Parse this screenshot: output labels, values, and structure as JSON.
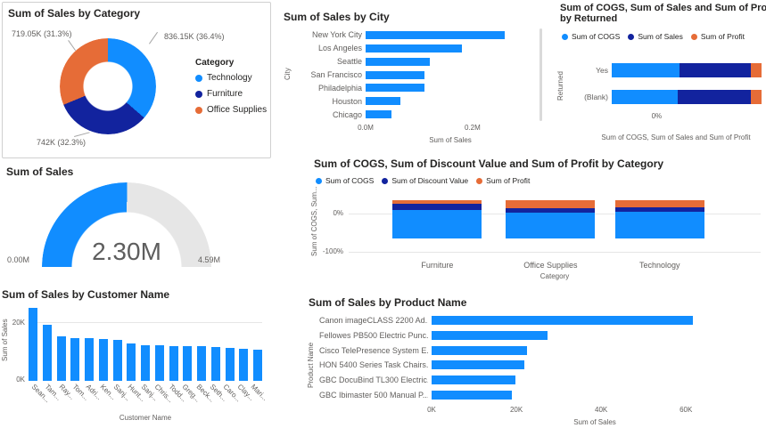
{
  "colors": {
    "blue": "#118DFF",
    "dark_blue": "#12239E",
    "orange": "#E66C37",
    "title_text": "#252423",
    "axis_text": "#605E5C",
    "grid": "#E6E6E6",
    "gauge_track": "#E6E6E6",
    "gauge_value_text": "#5E5E5E",
    "background": "#FFFFFF"
  },
  "chart_data": [
    {
      "id": "donut-sales-by-category",
      "type": "pie",
      "title": "Sum of Sales by Category",
      "legend_title": "Category",
      "legend_position": "right",
      "slices": [
        {
          "name": "Technology",
          "color_key": "blue",
          "value_label": "836.15K (36.4%)",
          "pct": 36.4
        },
        {
          "name": "Furniture",
          "color_key": "dark_blue",
          "value_label": "742K (32.3%)",
          "pct": 32.3
        },
        {
          "name": "Office Supplies",
          "color_key": "orange",
          "value_label": "719.05K (31.3%)",
          "pct": 31.3
        }
      ]
    },
    {
      "id": "gauge-sum-of-sales",
      "type": "gauge",
      "title": "Sum of Sales",
      "value": 2.3,
      "min": 0,
      "max": 4.59,
      "value_label": "2.30M",
      "min_label": "0.00M",
      "max_label": "4.59M"
    },
    {
      "id": "bar-sales-by-city",
      "type": "bar",
      "orientation": "horizontal",
      "title": "Sum of Sales by City",
      "xlabel": "Sum of Sales",
      "ylabel": "City",
      "categories": [
        "New York City",
        "Los Angeles",
        "Seattle",
        "San Francisco",
        "Philadelphia",
        "Houston",
        "Chicago"
      ],
      "values": [
        0.26,
        0.18,
        0.12,
        0.11,
        0.11,
        0.065,
        0.049
      ],
      "unit": "M",
      "xmax": 0.317,
      "xticks": [
        {
          "label": "0.0M",
          "v": 0
        },
        {
          "label": "0.2M",
          "v": 0.2
        }
      ]
    },
    {
      "id": "stacked-bar-by-returned",
      "type": "bar",
      "orientation": "horizontal",
      "stacked": true,
      "stack_mode": "percent",
      "title": "Sum of COGS, Sum of Sales and Sum of Profit by Returned",
      "title_line1": "Sum of COGS, Sum of Sales and Sum of Prof",
      "title_line2": "by Returned",
      "xlabel": "Sum of COGS, Sum of Sales and Sum of Profit",
      "ylabel": "Returned",
      "categories": [
        "Yes",
        "(Blank)"
      ],
      "legend": [
        {
          "label": "Sum of COGS",
          "color_key": "blue"
        },
        {
          "label": "Sum of Sales",
          "color_key": "dark_blue"
        },
        {
          "label": "Sum of Profit",
          "color_key": "orange"
        }
      ],
      "series": [
        {
          "name": "Sum of COGS",
          "color_key": "blue",
          "values": [
            45,
            44
          ]
        },
        {
          "name": "Sum of Sales",
          "color_key": "dark_blue",
          "values": [
            48,
            49
          ]
        },
        {
          "name": "Sum of Profit",
          "color_key": "orange",
          "values": [
            7,
            7
          ]
        }
      ],
      "xticks": [
        {
          "label": "0%",
          "pos_pct": 30
        }
      ]
    },
    {
      "id": "stacked-column-by-category",
      "type": "bar",
      "orientation": "vertical",
      "stacked": true,
      "stack_mode": "percent",
      "title": "Sum of COGS, Sum of Discount Value and Sum of Profit by Category",
      "xlabel": "Category",
      "ylabel": "Sum of COGS, Sum...",
      "categories": [
        "Furniture",
        "Office Supplies",
        "Technology"
      ],
      "legend": [
        {
          "label": "Sum of COGS",
          "color_key": "blue"
        },
        {
          "label": "Sum of Discount Value",
          "color_key": "dark_blue"
        },
        {
          "label": "Sum of Profit",
          "color_key": "orange"
        }
      ],
      "series": [
        {
          "name": "Sum of Profit",
          "color_key": "orange",
          "values": [
            9,
            22,
            18
          ]
        },
        {
          "name": "Sum of Discount Value",
          "color_key": "dark_blue",
          "values": [
            16,
            11,
            13
          ]
        },
        {
          "name": "Sum of COGS",
          "color_key": "blue",
          "values": [
            75,
            67,
            69
          ]
        }
      ],
      "yticks": [
        {
          "label": "0%"
        },
        {
          "label": "-100%"
        }
      ]
    },
    {
      "id": "bar-sales-by-customer",
      "type": "bar",
      "orientation": "vertical",
      "title": "Sum of Sales by Customer Name",
      "xlabel": "Customer Name",
      "ylabel": "Sum of Sales",
      "categories": [
        "Sean...",
        "Tam...",
        "Ray...",
        "Tom...",
        "Adri...",
        "Ken...",
        "Sanj...",
        "Hunt...",
        "Sanj...",
        "Chris...",
        "Todd...",
        "Greg...",
        "Beck...",
        "Seth...",
        "Caro...",
        "Clay...",
        "Mari..."
      ],
      "values": [
        25.0,
        19.1,
        15.1,
        14.6,
        14.5,
        14.2,
        14.1,
        12.9,
        12.2,
        12.1,
        11.9,
        11.8,
        11.8,
        11.5,
        11.2,
        10.9,
        10.7
      ],
      "unit": "K",
      "ymax": 25.5,
      "yticks": [
        {
          "label": "20K",
          "v": 20
        },
        {
          "label": "0K",
          "v": 0
        }
      ]
    },
    {
      "id": "bar-sales-by-product",
      "type": "bar",
      "orientation": "horizontal",
      "title": "Sum of Sales by Product Name",
      "xlabel": "Sum of Sales",
      "ylabel": "Product Name",
      "categories": [
        "Canon imageCLASS 2200 Ad...",
        "Fellowes PB500 Electric Punc...",
        "Cisco TelePresence System E...",
        "HON 5400 Series Task Chairs...",
        "GBC DocuBind TL300 Electric...",
        "GBC Ibimaster 500 Manual P..."
      ],
      "values": [
        61.6,
        27.4,
        22.6,
        21.9,
        19.8,
        19.0
      ],
      "unit": "K",
      "xmax": 77,
      "xticks": [
        {
          "label": "0K",
          "v": 0
        },
        {
          "label": "20K",
          "v": 20
        },
        {
          "label": "40K",
          "v": 40
        },
        {
          "label": "60K",
          "v": 60
        }
      ]
    }
  ]
}
